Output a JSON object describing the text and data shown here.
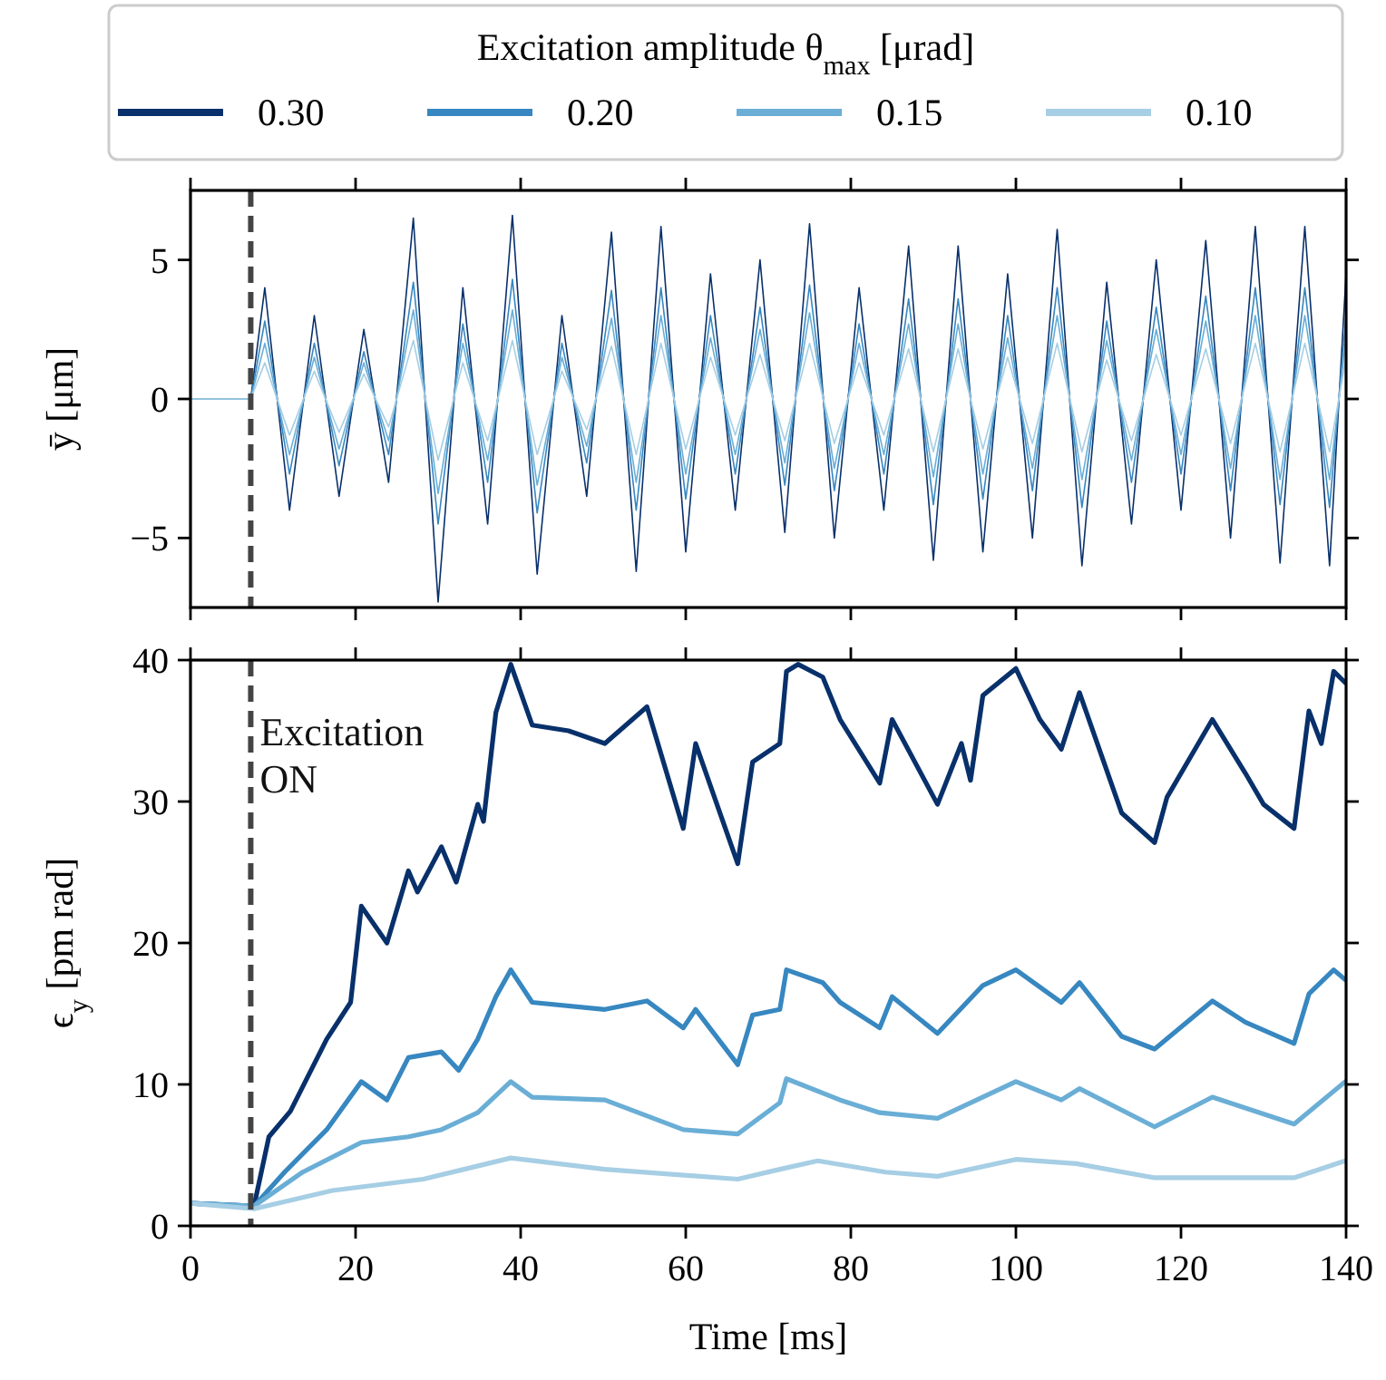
{
  "chart_data": [
    {
      "type": "line",
      "ylabel": "ȳ [μm]",
      "legend": "top",
      "legend_title": "Excitation amplitude θ$_{max}$ [μrad]",
      "tick_labels": "y",
      "xlim": [
        0,
        140
      ],
      "xticks": [
        0,
        20,
        40,
        60,
        80,
        100,
        120,
        140
      ],
      "ylim": [
        -7.5,
        7.5
      ],
      "yticks": [
        {
          "value": -5,
          "label": "−5"
        },
        0,
        5
      ],
      "x": [
        0,
        7.3,
        9,
        12,
        15,
        18,
        21,
        24,
        27,
        30,
        33,
        36,
        39,
        42,
        45,
        48,
        51,
        54,
        57,
        60,
        63,
        66,
        69,
        72,
        75,
        78,
        81,
        84,
        87,
        90,
        93,
        96,
        99,
        102,
        105,
        108,
        111,
        114,
        117,
        120,
        123,
        126,
        129,
        132,
        135,
        138,
        140
      ],
      "ref_lines": [
        {
          "axis": "x",
          "value": 7.3,
          "color": "#444444",
          "line_style": "dashed"
        }
      ],
      "series": [
        {
          "name": "0.30",
          "color": "#08306b",
          "values": [
            0,
            0,
            4,
            -4,
            3,
            -3.5,
            2.5,
            -3,
            6.5,
            -7.3,
            4,
            -4.5,
            6.6,
            -6.3,
            3,
            -3.5,
            6,
            -6.2,
            6.2,
            -5.5,
            4.5,
            -4,
            5,
            -4.8,
            6.3,
            -5,
            4,
            -4,
            5.5,
            -5.8,
            5.5,
            -5.5,
            4.5,
            -5,
            6.1,
            -6,
            4.2,
            -4.5,
            5,
            -4,
            5.7,
            -5,
            6.2,
            -5.9,
            6.2,
            -6,
            4.5
          ]
        },
        {
          "name": "0.20",
          "color": "#3787c0",
          "values": [
            0,
            0,
            2.8,
            -2.7,
            2,
            -2.4,
            1.7,
            -2,
            4.2,
            -4.5,
            2.7,
            -3,
            4.3,
            -4.1,
            2,
            -2.3,
            3.9,
            -4,
            4,
            -3.6,
            3,
            -2.7,
            3.3,
            -3.1,
            4.1,
            -3.3,
            2.7,
            -2.7,
            3.6,
            -3.8,
            3.6,
            -3.6,
            3,
            -3.3,
            4,
            -3.9,
            2.8,
            -3,
            3.3,
            -2.7,
            3.7,
            -3.3,
            4,
            -3.8,
            4,
            -3.9,
            3
          ]
        },
        {
          "name": "0.15",
          "color": "#6aaed6",
          "values": [
            0,
            0,
            2,
            -2,
            1.5,
            -1.8,
            1.3,
            -1.5,
            3.2,
            -3.4,
            2,
            -2.2,
            3.2,
            -3.1,
            1.5,
            -1.7,
            2.9,
            -3,
            3,
            -2.7,
            2.2,
            -2,
            2.5,
            -2.3,
            3.1,
            -2.5,
            2,
            -2,
            2.7,
            -2.8,
            2.7,
            -2.7,
            2.2,
            -2.5,
            3,
            -2.9,
            2.1,
            -2.2,
            2.5,
            -2,
            2.8,
            -2.5,
            3,
            -2.9,
            3,
            -2.9,
            2.2
          ]
        },
        {
          "name": "0.10",
          "color": "#a6cee4",
          "values": [
            0,
            0,
            1.3,
            -1.3,
            1,
            -1.2,
            0.9,
            -1,
            2.1,
            -2.2,
            1.3,
            -1.5,
            2.1,
            -2,
            1,
            -1.1,
            1.9,
            -2,
            2,
            -1.8,
            1.5,
            -1.3,
            1.6,
            -1.5,
            2,
            -1.6,
            1.3,
            -1.3,
            1.8,
            -1.9,
            1.8,
            -1.8,
            1.5,
            -1.6,
            2,
            -1.9,
            1.4,
            -1.5,
            1.6,
            -1.3,
            1.8,
            -1.6,
            2,
            -1.9,
            2,
            -1.9,
            1.5
          ]
        }
      ]
    },
    {
      "type": "line",
      "xlabel": "Time [ms]",
      "ylabel": "ϵ$_{y}$ [pm rad]",
      "xlim": [
        0,
        140
      ],
      "xticks": [
        0,
        20,
        40,
        60,
        80,
        100,
        120,
        140
      ],
      "ylim": [
        0,
        40
      ],
      "yticks": [
        0,
        10,
        20,
        30,
        40
      ],
      "ref_lines": [
        {
          "axis": "x",
          "value": 7.3,
          "label": "Excitation ON",
          "color": "#444444",
          "line_style": "dashed"
        }
      ],
      "series": [
        {
          "color": "#08306b",
          "x": [
            0,
            7.7,
            9.5,
            12.1,
            16.5,
            19.4,
            20.7,
            23.8,
            26.4,
            27.5,
            30.4,
            32.2,
            34.8,
            35.5,
            37,
            38.8,
            41.4,
            45.8,
            50.2,
            55.3,
            59.7,
            61.2,
            66.3,
            68.1,
            71.4,
            72.2,
            73.6,
            76.6,
            78.7,
            83.5,
            85,
            90.5,
            93.4,
            94.5,
            96,
            100,
            102.9,
            105.5,
            107.7,
            112.8,
            116.8,
            118.3,
            123.8,
            127.8,
            130,
            133.7,
            135.5,
            137,
            138.5,
            139.9
          ],
          "values": [
            1.6,
            1.4,
            6.3,
            8.1,
            13.2,
            15.8,
            22.6,
            20,
            25.1,
            23.6,
            26.8,
            24.3,
            29.8,
            28.6,
            36.3,
            39.7,
            35.4,
            35,
            34.1,
            36.7,
            28.1,
            34.1,
            25.6,
            32.8,
            34.1,
            39.2,
            39.7,
            38.8,
            35.8,
            31.3,
            35.8,
            29.8,
            34.1,
            31.5,
            37.5,
            39.4,
            35.8,
            33.7,
            37.7,
            29.2,
            27.1,
            30.3,
            35.8,
            32,
            29.8,
            28.1,
            36.4,
            34.1,
            39.2,
            38.4
          ]
        },
        {
          "color": "#3787c0",
          "x": [
            0,
            7.7,
            11.4,
            16.5,
            20.7,
            23.8,
            26.4,
            30.4,
            32.5,
            34.8,
            37,
            38.8,
            41.4,
            50.2,
            55.3,
            59.7,
            61.2,
            66.3,
            68.1,
            71.4,
            72.2,
            76.6,
            78.7,
            83.5,
            85,
            90.5,
            96,
            100,
            105.5,
            107.7,
            112.8,
            116.8,
            123.8,
            127.8,
            133.7,
            135.5,
            138.5,
            139.9
          ],
          "values": [
            1.6,
            1.4,
            3.8,
            6.8,
            10.2,
            8.9,
            11.9,
            12.3,
            11,
            13.2,
            16.2,
            18.1,
            15.8,
            15.3,
            15.9,
            14,
            15.3,
            11.4,
            14.9,
            15.3,
            18.1,
            17.2,
            15.8,
            14,
            16.2,
            13.6,
            17,
            18.1,
            15.8,
            17.2,
            13.4,
            12.5,
            15.9,
            14.4,
            12.9,
            16.4,
            18.1,
            17.4
          ]
        },
        {
          "color": "#6aaed6",
          "x": [
            0,
            7.7,
            13.6,
            20.7,
            26.4,
            30.4,
            34.8,
            38.8,
            41.4,
            50.2,
            59.7,
            66.3,
            71.4,
            72.2,
            78.7,
            83.5,
            90.5,
            100,
            105.5,
            107.7,
            116.8,
            123.8,
            133.7,
            139.9
          ],
          "values": [
            1.6,
            1.4,
            3.8,
            5.9,
            6.3,
            6.8,
            8,
            10.2,
            9.1,
            8.9,
            6.8,
            6.5,
            8.7,
            10.4,
            8.9,
            8,
            7.6,
            10.2,
            8.9,
            9.7,
            7,
            9.1,
            7.2,
            10.2
          ]
        },
        {
          "color": "#a6cee4",
          "x": [
            0,
            7.7,
            17.2,
            28.2,
            38.8,
            50.2,
            66.3,
            71.4,
            76,
            84.2,
            90.5,
            100,
            107.3,
            116.8,
            133.7,
            139.9
          ],
          "values": [
            1.6,
            1.2,
            2.5,
            3.3,
            4.8,
            4,
            3.3,
            4,
            4.6,
            3.8,
            3.5,
            4.7,
            4.4,
            3.4,
            3.4,
            4.6
          ]
        }
      ]
    }
  ]
}
